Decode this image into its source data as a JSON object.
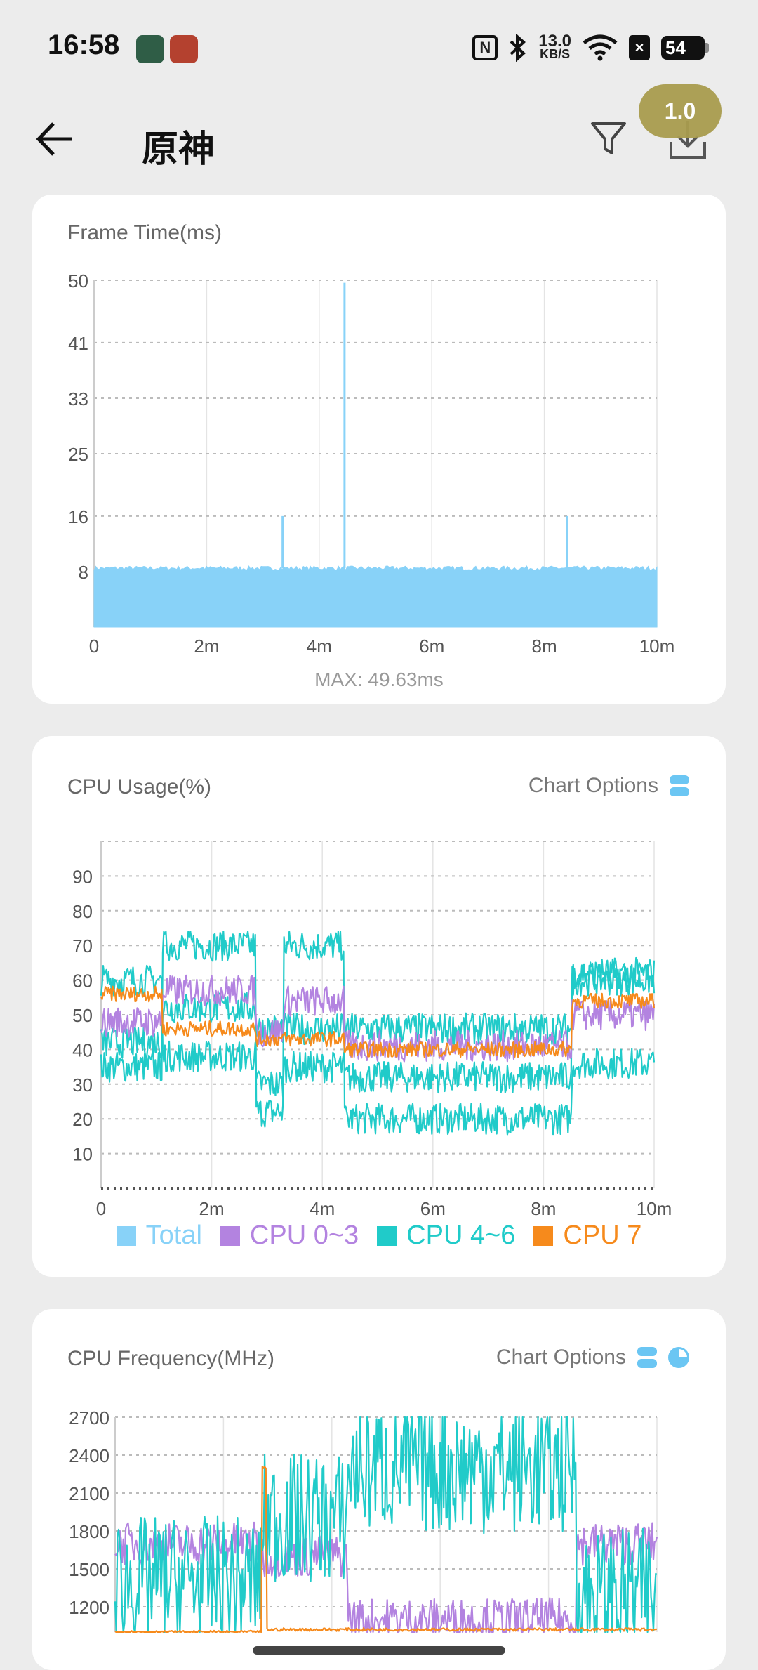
{
  "status_bar": {
    "time": "16:58",
    "net_speed_value": "13.0",
    "net_speed_unit": "KB/S",
    "nfc_label": "N",
    "battery": "54",
    "icons": [
      "nfc-icon",
      "bluetooth-icon",
      "wifi-icon",
      "sim-off-icon",
      "battery-icon"
    ]
  },
  "header": {
    "title": "原神",
    "zoom_badge": "1.0",
    "icons": [
      "back-arrow-icon",
      "filter-icon",
      "export-icon"
    ]
  },
  "colors": {
    "frame": "#88d2f8",
    "total": "#88d2f8",
    "cpu03": "#b383e0",
    "cpu46": "#20cbc9",
    "cpu7": "#f68a1c"
  },
  "frame_card": {
    "title": "Frame Time(ms)",
    "max_label": "MAX: 49.63ms"
  },
  "cpu_usage_card": {
    "title": "CPU Usage(%)",
    "chart_options": "Chart Options",
    "legend": [
      "Total",
      "CPU 0~3",
      "CPU 4~6",
      "CPU 7"
    ]
  },
  "cpu_freq_card": {
    "title": "CPU Frequency(MHz)",
    "chart_options": "Chart Options"
  },
  "chart_data": [
    {
      "type": "area",
      "title": "Frame Time(ms)",
      "x_ticks": [
        "0",
        "2m",
        "4m",
        "6m",
        "8m",
        "10m"
      ],
      "xlim": [
        0,
        10
      ],
      "y_ticks": [
        8,
        16,
        25,
        33,
        41,
        50
      ],
      "ylim": [
        0,
        50
      ],
      "baseline": 8.5,
      "spikes": [
        {
          "x": 3.35,
          "y": 16
        },
        {
          "x": 4.45,
          "y": 49.63
        },
        {
          "x": 8.4,
          "y": 16
        }
      ],
      "max": 49.63,
      "grid": true
    },
    {
      "type": "line",
      "title": "CPU Usage(%)",
      "x_ticks": [
        "0",
        "2m",
        "4m",
        "6m",
        "8m",
        "10m"
      ],
      "xlim": [
        0,
        10
      ],
      "y_ticks": [
        10,
        20,
        30,
        40,
        50,
        60,
        70,
        80,
        90
      ],
      "ylim": [
        0,
        100
      ],
      "legend_position": "bottom",
      "series": [
        {
          "name": "CPU 0~3",
          "segments": [
            [
              0,
              1.1,
              48
            ],
            [
              1.1,
              2.8,
              57
            ],
            [
              2.8,
              3.3,
              45
            ],
            [
              3.3,
              4.4,
              54
            ],
            [
              4.4,
              8.5,
              41
            ],
            [
              8.5,
              10,
              50
            ]
          ]
        },
        {
          "name": "CPU 7",
          "segments": [
            [
              0,
              1.1,
              56
            ],
            [
              1.1,
              2.8,
              46
            ],
            [
              2.8,
              3.3,
              43
            ],
            [
              3.3,
              4.4,
              43
            ],
            [
              4.4,
              8.5,
              40
            ],
            [
              8.5,
              10,
              54
            ]
          ]
        },
        {
          "name": "CPU 4~6",
          "segments": [
            [
              0,
              1.1,
              35
            ],
            [
              1.1,
              2.8,
              70
            ],
            [
              2.8,
              3.3,
              22
            ],
            [
              3.3,
              4.4,
              70
            ],
            [
              4.4,
              8.5,
              20
            ],
            [
              8.5,
              10,
              36
            ]
          ]
        },
        {
          "name": "CPU 4~6",
          "segments": [
            [
              0,
              1.1,
              60
            ],
            [
              1.1,
              2.8,
              38
            ],
            [
              2.8,
              3.3,
              30
            ],
            [
              3.3,
              4.4,
              35
            ],
            [
              4.4,
              8.5,
              32
            ],
            [
              8.5,
              10,
              60
            ]
          ]
        },
        {
          "name": "CPU 4~6",
          "segments": [
            [
              0,
              1.1,
              42
            ],
            [
              1.1,
              2.8,
              52
            ],
            [
              2.8,
              3.3,
              46
            ],
            [
              3.3,
              4.4,
              46
            ],
            [
              4.4,
              8.5,
              46
            ],
            [
              8.5,
              10,
              62
            ]
          ]
        }
      ],
      "grid": true
    },
    {
      "type": "line",
      "title": "CPU Frequency(MHz)",
      "xlim": [
        0,
        10
      ],
      "y_ticks": [
        1200,
        1500,
        1800,
        2100,
        2400,
        2700
      ],
      "ylim": [
        1000,
        2700
      ],
      "series": [
        {
          "name": "CPU 0~3",
          "segments": [
            [
              0,
              2.7,
              1700
            ],
            [
              2.7,
              4.3,
              1600
            ],
            [
              4.3,
              8.5,
              1100
            ],
            [
              8.5,
              10,
              1700
            ]
          ]
        },
        {
          "name": "CPU 4~6",
          "segments": [
            [
              0,
              2.7,
              1400
            ],
            [
              2.7,
              4.3,
              1900
            ],
            [
              4.3,
              8.5,
              2300
            ],
            [
              8.5,
              10,
              1300
            ]
          ]
        },
        {
          "name": "CPU 7",
          "segments": [
            [
              0,
              2.7,
              1000
            ],
            [
              2.7,
              2.8,
              2300
            ],
            [
              2.8,
              10,
              1020
            ]
          ]
        }
      ],
      "grid": true
    }
  ]
}
